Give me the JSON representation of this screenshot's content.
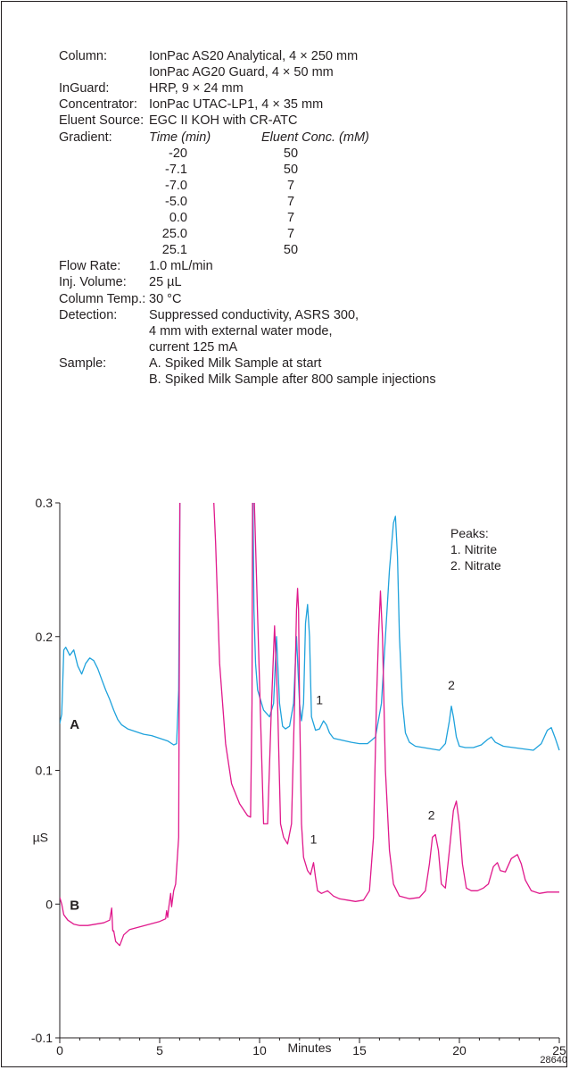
{
  "conditions": [
    {
      "label": "Column:",
      "lines": [
        "IonPac AS20 Analytical, 4 × 250 mm",
        "IonPac AG20 Guard, 4 × 50 mm"
      ]
    },
    {
      "label": "InGuard:",
      "lines": [
        "HRP, 9 × 24 mm"
      ]
    },
    {
      "label": "Concentrator:",
      "lines": [
        "IonPac UTAC-LP1, 4 × 35 mm"
      ]
    },
    {
      "label": "Eluent Source:",
      "lines": [
        "EGC II KOH with CR-ATC"
      ]
    },
    {
      "label": "Gradient:",
      "lines": []
    },
    {
      "label": "Flow Rate:",
      "lines": [
        "1.0 mL/min"
      ]
    },
    {
      "label": "Inj. Volume:",
      "lines": [
        "25 µL"
      ]
    },
    {
      "label": "Column Temp.:",
      "lines": [
        "30 °C"
      ]
    },
    {
      "label": "Detection:",
      "lines": [
        "Suppressed conductivity, ASRS 300,",
        "4 mm with external water mode,",
        "current 125 mA"
      ]
    },
    {
      "label": "Sample:",
      "lines": [
        "A. Spiked Milk Sample at start",
        "B. Spiked Milk Sample after 800 sample injections"
      ]
    }
  ],
  "gradient": {
    "time_header": "Time (min)",
    "conc_header": "Eluent Conc. (mM)",
    "rows": [
      {
        "time": "-20",
        "conc": "50"
      },
      {
        "time": "-7.1",
        "conc": "50"
      },
      {
        "time": "-7.0",
        "conc": "7"
      },
      {
        "time": "-5.0",
        "conc": "7"
      },
      {
        "time": "0.0",
        "conc": "7"
      },
      {
        "time": "25.0",
        "conc": "7"
      },
      {
        "time": "25.1",
        "conc": "50"
      }
    ]
  },
  "chart_data": {
    "type": "line",
    "xlabel": "Minutes",
    "ylabel": "µS",
    "xlim": [
      0,
      25
    ],
    "ylim": [
      -0.1,
      0.3
    ],
    "x_ticks": [
      "0",
      "5",
      "10",
      "15",
      "20",
      "25"
    ],
    "y_ticks": [
      "-0.1",
      "0",
      "0.1",
      "0.2",
      "0.3"
    ],
    "legend": {
      "title": "Peaks:",
      "items": [
        "1. Nitrite",
        "2. Nitrate"
      ]
    },
    "figure_id": "28640",
    "series": [
      {
        "name": "A",
        "color": "#1fa2dc",
        "x": [
          0,
          0.1,
          0.2,
          0.3,
          0.5,
          0.7,
          0.9,
          1.1,
          1.3,
          1.5,
          1.7,
          1.9,
          2.1,
          2.3,
          2.5,
          2.7,
          2.9,
          3.1,
          3.4,
          3.8,
          4.2,
          4.6,
          5.0,
          5.4,
          5.7,
          5.85,
          5.95,
          6.02,
          9.63,
          9.67,
          9.72,
          9.8,
          9.9,
          10.2,
          10.5,
          10.7,
          10.85,
          11.0,
          11.15,
          11.3,
          11.5,
          11.7,
          11.85,
          12.0,
          12.1,
          12.2,
          12.3,
          12.4,
          12.5,
          12.6,
          12.8,
          13.0,
          13.2,
          13.35,
          13.5,
          13.7,
          14.0,
          14.3,
          14.6,
          15.0,
          15.4,
          15.8,
          16.1,
          16.3,
          16.5,
          16.7,
          16.8,
          16.9,
          17.0,
          17.15,
          17.3,
          17.5,
          17.8,
          18.2,
          18.6,
          19.0,
          19.3,
          19.5,
          19.6,
          19.7,
          19.85,
          20.0,
          20.3,
          20.7,
          21.1,
          21.4,
          21.6,
          21.8,
          22.2,
          22.7,
          23.2,
          23.7,
          24.1,
          24.4,
          24.6,
          24.8,
          25.0
        ],
        "y": [
          0.135,
          0.142,
          0.19,
          0.192,
          0.186,
          0.19,
          0.178,
          0.172,
          0.18,
          0.184,
          0.182,
          0.176,
          0.168,
          0.16,
          0.153,
          0.145,
          0.138,
          0.134,
          0.131,
          0.129,
          0.127,
          0.126,
          0.124,
          0.122,
          0.119,
          0.12,
          0.16,
          0.32,
          0.32,
          0.3,
          0.22,
          0.18,
          0.16,
          0.145,
          0.14,
          0.15,
          0.2,
          0.15,
          0.133,
          0.131,
          0.133,
          0.15,
          0.2,
          0.15,
          0.137,
          0.15,
          0.21,
          0.224,
          0.2,
          0.14,
          0.13,
          0.131,
          0.137,
          0.134,
          0.128,
          0.124,
          0.123,
          0.122,
          0.121,
          0.12,
          0.12,
          0.125,
          0.15,
          0.2,
          0.25,
          0.285,
          0.29,
          0.26,
          0.2,
          0.15,
          0.128,
          0.121,
          0.118,
          0.117,
          0.116,
          0.115,
          0.12,
          0.137,
          0.148,
          0.14,
          0.125,
          0.118,
          0.117,
          0.117,
          0.119,
          0.123,
          0.125,
          0.121,
          0.118,
          0.117,
          0.116,
          0.115,
          0.12,
          0.13,
          0.132,
          0.124,
          0.115
        ]
      },
      {
        "name": "B",
        "color": "#e0198c",
        "x": [
          0,
          0.1,
          0.2,
          0.4,
          0.7,
          1.0,
          1.4,
          1.8,
          2.2,
          2.5,
          2.6,
          2.65,
          2.7,
          2.8,
          3.0,
          3.2,
          3.5,
          4.0,
          4.5,
          5.0,
          5.3,
          5.35,
          5.4,
          5.45,
          5.55,
          5.6,
          5.7,
          5.8,
          5.95,
          6.02,
          7.65,
          7.8,
          8.0,
          8.3,
          8.6,
          9.0,
          9.4,
          9.55,
          9.62,
          9.65,
          9.7,
          10.2,
          10.4,
          10.6,
          10.75,
          10.9,
          11.05,
          11.2,
          11.4,
          11.6,
          11.75,
          11.85,
          11.9,
          11.95,
          12.0,
          12.1,
          12.2,
          12.4,
          12.55,
          12.7,
          12.8,
          12.9,
          13.1,
          13.4,
          13.7,
          14.0,
          14.4,
          14.8,
          15.2,
          15.5,
          15.7,
          15.85,
          15.95,
          16.05,
          16.15,
          16.3,
          16.5,
          16.7,
          17.0,
          17.5,
          18.0,
          18.3,
          18.5,
          18.65,
          18.8,
          18.95,
          19.1,
          19.3,
          19.5,
          19.7,
          19.85,
          20.0,
          20.15,
          20.35,
          20.6,
          20.9,
          21.2,
          21.45,
          21.7,
          21.9,
          22.05,
          22.3,
          22.6,
          22.9,
          23.1,
          23.3,
          23.6,
          24.0,
          24.4,
          24.7,
          25.0
        ],
        "y": [
          0.005,
          0.0,
          -0.008,
          -0.012,
          -0.015,
          -0.016,
          -0.016,
          -0.015,
          -0.014,
          -0.012,
          -0.003,
          -0.02,
          -0.02,
          -0.028,
          -0.031,
          -0.023,
          -0.019,
          -0.017,
          -0.015,
          -0.013,
          -0.011,
          -0.005,
          -0.01,
          -0.003,
          0.008,
          -0.002,
          0.01,
          0.015,
          0.05,
          0.32,
          0.32,
          0.27,
          0.18,
          0.12,
          0.09,
          0.075,
          0.066,
          0.065,
          0.15,
          0.32,
          0.32,
          0.06,
          0.06,
          0.15,
          0.208,
          0.15,
          0.06,
          0.05,
          0.045,
          0.06,
          0.15,
          0.22,
          0.236,
          0.22,
          0.15,
          0.06,
          0.035,
          0.025,
          0.022,
          0.031,
          0.02,
          0.01,
          0.008,
          0.01,
          0.006,
          0.004,
          0.003,
          0.002,
          0.003,
          0.01,
          0.05,
          0.15,
          0.2,
          0.234,
          0.2,
          0.1,
          0.04,
          0.015,
          0.006,
          0.004,
          0.005,
          0.01,
          0.03,
          0.05,
          0.052,
          0.04,
          0.015,
          0.012,
          0.04,
          0.07,
          0.077,
          0.06,
          0.03,
          0.012,
          0.01,
          0.01,
          0.012,
          0.015,
          0.028,
          0.031,
          0.025,
          0.024,
          0.034,
          0.037,
          0.03,
          0.018,
          0.01,
          0.008,
          0.009,
          0.009,
          0.009
        ]
      }
    ],
    "annotations": [
      {
        "text": "A",
        "x": 0.3,
        "y": 0.135,
        "bold": true
      },
      {
        "text": "B",
        "x": 0.3,
        "y": 0.0,
        "bold": true
      },
      {
        "text": "1",
        "x": 13.0,
        "y": 0.144
      },
      {
        "text": "2",
        "x": 19.6,
        "y": 0.155
      },
      {
        "text": "1",
        "x": 12.7,
        "y": 0.04
      },
      {
        "text": "2",
        "x": 18.6,
        "y": 0.058
      }
    ]
  }
}
